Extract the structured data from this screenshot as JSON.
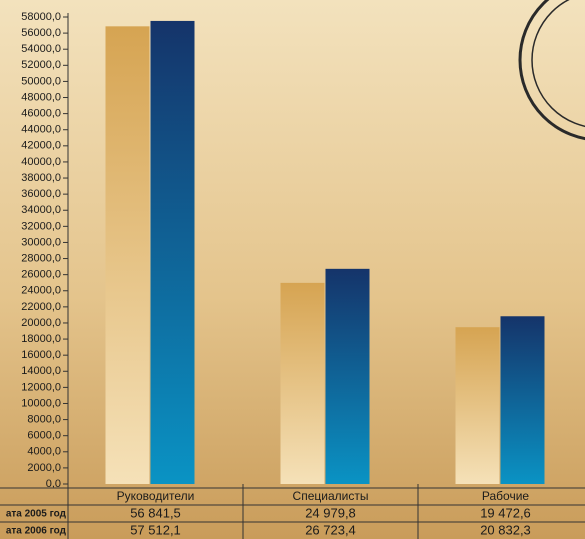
{
  "chart_data": {
    "type": "bar",
    "categories": [
      "Руководители",
      "Специалисты",
      "Рабочие"
    ],
    "series": [
      {
        "name": "ата 2005 год",
        "color": "#d6a452",
        "values": [
          56841.5,
          24979.8,
          19472.6
        ],
        "value_labels": [
          "56 841,5",
          "24 979,8",
          "19 472,6"
        ]
      },
      {
        "name": "ата 2006 год",
        "color": "#15346a",
        "values": [
          57512.1,
          26723.4,
          20832.3
        ],
        "value_labels": [
          "57 512,1",
          "26 723,4",
          "20 832,3"
        ]
      }
    ],
    "ylim": [
      0,
      58000
    ],
    "yticks": [
      {
        "value": 0,
        "label": "0,0"
      },
      {
        "value": 2000,
        "label": "2000,0"
      },
      {
        "value": 4000,
        "label": "4000,0"
      },
      {
        "value": 6000,
        "label": "6000,0"
      },
      {
        "value": 8000,
        "label": "8000,0"
      },
      {
        "value": 10000,
        "label": "10000,0"
      },
      {
        "value": 12000,
        "label": "12000,0"
      },
      {
        "value": 14000,
        "label": "14000,0"
      },
      {
        "value": 16000,
        "label": "16000,0"
      },
      {
        "value": 18000,
        "label": "18000,0"
      },
      {
        "value": 20000,
        "label": "20000,0"
      },
      {
        "value": 22000,
        "label": "22000,0"
      },
      {
        "value": 24000,
        "label": "24000,0"
      },
      {
        "value": 26000,
        "label": "26000,0"
      },
      {
        "value": 28000,
        "label": "28000,0"
      },
      {
        "value": 30000,
        "label": "30000,0"
      },
      {
        "value": 32000,
        "label": "32000,0"
      },
      {
        "value": 34000,
        "label": "34000,0"
      },
      {
        "value": 36000,
        "label": "36000,0"
      },
      {
        "value": 38000,
        "label": "38000,0"
      },
      {
        "value": 40000,
        "label": "40000,0"
      },
      {
        "value": 42000,
        "label": "42000,0"
      },
      {
        "value": 44000,
        "label": "44000,0"
      },
      {
        "value": 46000,
        "label": "46000,0"
      },
      {
        "value": 48000,
        "label": "48000,0"
      },
      {
        "value": 50000,
        "label": "50000,0"
      },
      {
        "value": 52000,
        "label": "52000,0"
      },
      {
        "value": 54000,
        "label": "54000,0"
      },
      {
        "value": 56000,
        "label": "56000,0"
      },
      {
        "value": 58000,
        "label": "58000,0"
      }
    ]
  }
}
